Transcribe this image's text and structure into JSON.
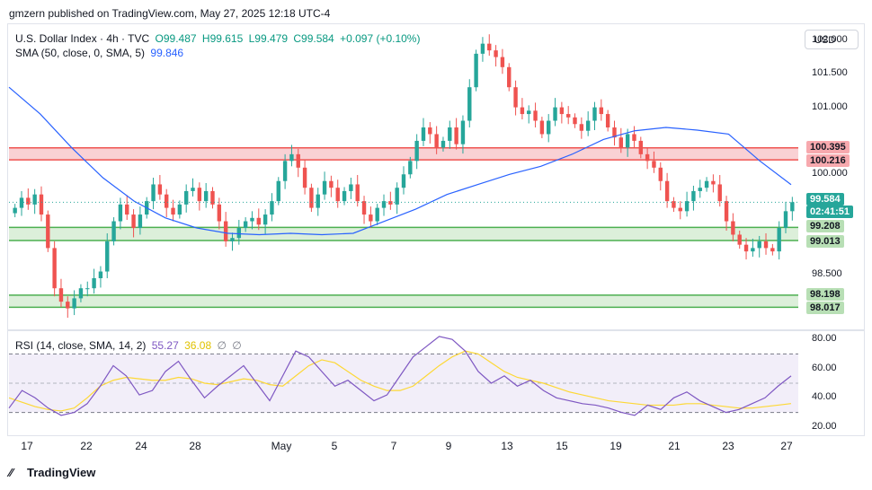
{
  "published": "gmzern published on TradingView.com, May 27, 2025 12:18 UTC-4",
  "legend": {
    "symbol": "U.S. Dollar Index · 4h · TVC",
    "open": "O99.487",
    "high": "H99.615",
    "low": "L99.479",
    "close": "C99.584",
    "change": "+0.097 (+0.10%)",
    "sma_label": "SMA (50, close, 0, SMA, 5)",
    "sma_value": "99.846",
    "rsi_label": "RSI (14, close, SMA, 14, 2)",
    "rsi_value": "55.27",
    "rsi_ma_value": "36.08",
    "rsi_na1": "∅",
    "rsi_na2": "∅"
  },
  "currency": "USD",
  "footer": "TradingView",
  "colors": {
    "up": "#26a69a",
    "down": "#ef5350",
    "sma": "#2962ff",
    "rsi": "#7e57c2",
    "rsi_ma": "#fdd835",
    "resistance_fill": "#f8c9cc",
    "resistance_line": "#ef5350",
    "support_fill": "#d6ecd3",
    "support_line": "#4caf50"
  },
  "chart_data": [
    {
      "type": "line",
      "name": "price",
      "ylim": [
        97.7,
        102.2
      ],
      "yticks": [
        "102.000",
        "101.500",
        "101.000",
        "100.000",
        "98.500"
      ],
      "x_labels": [
        "17",
        "22",
        "24",
        "28",
        "May",
        "5",
        "7",
        "9",
        "13",
        "15",
        "19",
        "21",
        "23",
        "27"
      ],
      "series": [
        {
          "name": "close",
          "values": [
            99.5,
            99.65,
            99.55,
            99.7,
            99.4,
            98.9,
            98.3,
            98.1,
            98.0,
            98.15,
            98.3,
            98.3,
            98.45,
            98.55,
            99.0,
            99.3,
            99.55,
            99.4,
            99.2,
            99.4,
            99.6,
            99.85,
            99.7,
            99.5,
            99.4,
            99.55,
            99.75,
            99.8,
            99.6,
            99.75,
            99.55,
            99.3,
            99.0,
            99.05,
            99.2,
            99.3,
            99.35,
            99.25,
            99.4,
            99.6,
            99.9,
            100.2,
            100.3,
            100.1,
            99.8,
            99.5,
            99.7,
            99.9,
            99.8,
            99.6,
            99.75,
            99.85,
            99.6,
            99.4,
            99.3,
            99.5,
            99.6,
            99.55,
            99.8,
            100.0,
            100.2,
            100.5,
            100.7,
            100.6,
            100.4,
            100.5,
            100.7,
            100.45,
            100.8,
            101.3,
            101.8,
            101.95,
            101.85,
            101.75,
            101.6,
            101.3,
            101.0,
            100.9,
            100.95,
            100.8,
            100.6,
            100.8,
            101.0,
            100.9,
            100.85,
            100.75,
            100.65,
            100.8,
            101.0,
            100.9,
            100.7,
            100.55,
            100.4,
            100.6,
            100.5,
            100.3,
            100.2,
            100.1,
            99.9,
            99.6,
            99.5,
            99.45,
            99.6,
            99.75,
            99.8,
            99.9,
            99.85,
            99.6,
            99.3,
            99.1,
            98.95,
            98.85,
            98.9,
            99.0,
            98.9,
            98.85,
            99.2,
            99.45,
            99.584
          ]
        },
        {
          "name": "SMA (50, close, 0, SMA, 5)",
          "value": "99.846",
          "values": [
            101.3,
            100.9,
            100.4,
            99.95,
            99.6,
            99.35,
            99.2,
            99.12,
            99.1,
            99.12,
            99.1,
            99.12,
            99.3,
            99.48,
            99.7,
            99.85,
            100.0,
            100.12,
            100.3,
            100.52,
            100.65,
            100.7,
            100.66,
            100.6,
            100.2,
            99.846
          ]
        }
      ],
      "levels": [
        {
          "kind": "resistance",
          "top": 100.395,
          "bottom": 100.216,
          "top_label": "100.395",
          "bottom_label": "100.216"
        },
        {
          "kind": "support",
          "top": 99.208,
          "bottom": 99.013,
          "top_label": "99.208",
          "bottom_label": "99.013"
        },
        {
          "kind": "support",
          "top": 98.198,
          "bottom": 98.017,
          "top_label": "98.198",
          "bottom_label": "98.017"
        }
      ],
      "last_price": "99.584",
      "countdown": "02:41:51"
    },
    {
      "type": "line",
      "name": "RSI",
      "ylim": [
        15,
        85
      ],
      "yticks": [
        "80.00",
        "60.00",
        "40.00",
        "20.00"
      ],
      "bands": [
        70,
        30
      ],
      "series": [
        {
          "name": "RSI",
          "value": "55.27",
          "values": [
            33,
            45,
            40,
            33,
            28,
            30,
            36,
            48,
            62,
            55,
            42,
            45,
            58,
            65,
            52,
            40,
            48,
            55,
            62,
            50,
            38,
            55,
            72,
            68,
            58,
            48,
            52,
            45,
            38,
            42,
            55,
            68,
            75,
            82,
            80,
            72,
            58,
            50,
            55,
            48,
            52,
            45,
            40,
            38,
            36,
            35,
            33,
            30,
            28,
            35,
            32,
            40,
            44,
            38,
            34,
            30,
            32,
            36,
            40,
            48,
            55
          ]
        },
        {
          "name": "RSI-based MA",
          "value": "36.08",
          "values": [
            40,
            37,
            34,
            32,
            31,
            33,
            40,
            48,
            52,
            54,
            53,
            52,
            52,
            54,
            53,
            50,
            49,
            51,
            53,
            52,
            49,
            48,
            55,
            62,
            66,
            64,
            58,
            52,
            48,
            45,
            45,
            48,
            55,
            62,
            68,
            72,
            70,
            64,
            58,
            54,
            52,
            50,
            47,
            44,
            42,
            40,
            38,
            37,
            36,
            35,
            35,
            35,
            36,
            36,
            35,
            34,
            33,
            33,
            34,
            35,
            36.08
          ]
        }
      ]
    }
  ]
}
